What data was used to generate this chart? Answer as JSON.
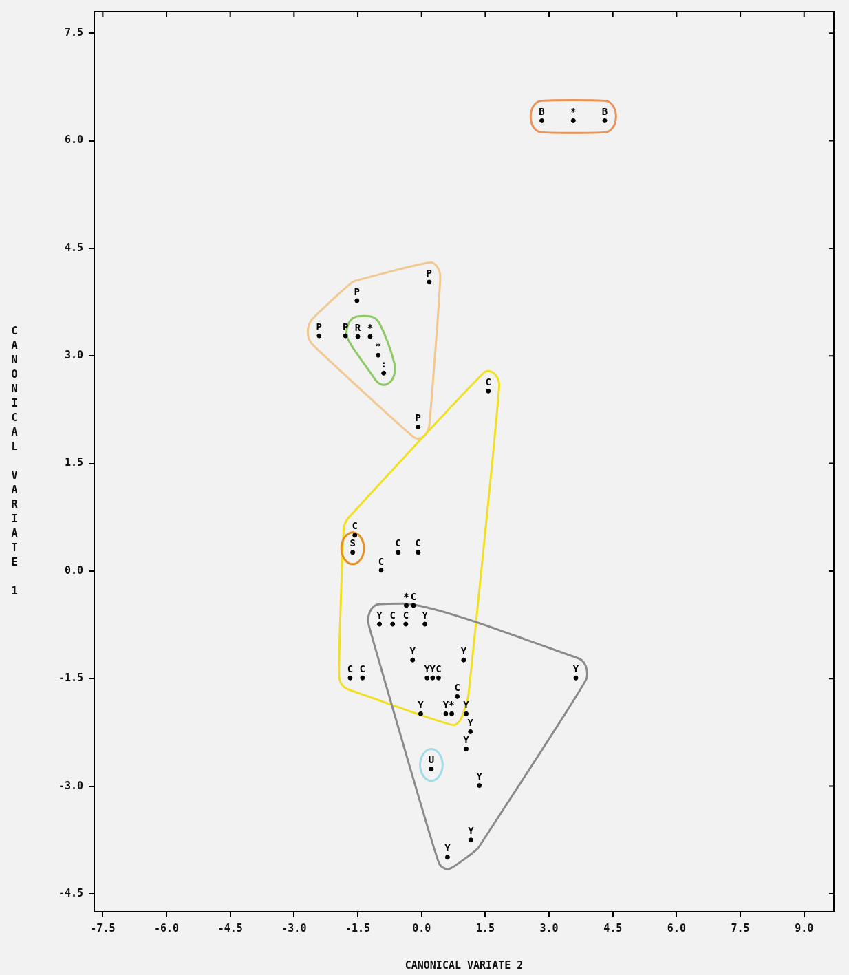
{
  "chart_data": {
    "type": "scatter",
    "xlabel": "CANONICAL VARIATE 2",
    "ylabel": "CANONICAL VARIATE 1",
    "marker": "circle",
    "xlim": [
      -7.7,
      9.7
    ],
    "ylim": [
      -4.75,
      7.8
    ],
    "xticks": [
      -7.5,
      {
        "value": -6,
        "label": "-6.0"
      },
      -4.5,
      {
        "value": -3,
        "label": "-3.0"
      },
      -1.5,
      {
        "value": 0,
        "label": "0.0"
      },
      1.5,
      {
        "value": 3,
        "label": "3.0"
      },
      4.5,
      {
        "value": 6,
        "label": "6.0"
      },
      7.5,
      {
        "value": 9,
        "label": "9.0"
      }
    ],
    "yticks": [
      -4.5,
      {
        "value": -3,
        "label": "-3.0"
      },
      -1.5,
      {
        "value": 0,
        "label": "0.0"
      },
      1.5,
      {
        "value": 3,
        "label": "3.0"
      },
      4.5,
      {
        "value": 6,
        "label": "6.0"
      },
      7.5
    ],
    "series": [
      {
        "name": "B",
        "color": "#000000",
        "x": [
          2.83,
          4.31
        ],
        "values": [
          6.28,
          6.28
        ]
      },
      {
        "name": "P",
        "color": "#000000",
        "x": [
          -2.41,
          -1.79,
          -1.52,
          0.18,
          -0.08
        ],
        "values": [
          3.28,
          3.28,
          3.77,
          4.03,
          2.01
        ]
      },
      {
        "name": "R",
        "color": "#000000",
        "x": [
          -1.5
        ],
        "values": [
          3.27
        ]
      },
      {
        "name": "C",
        "color": "#000000",
        "x": [
          1.57,
          -1.57,
          -0.55,
          -0.08,
          -0.95,
          -0.19,
          -0.68,
          -0.37,
          -1.68,
          -1.39,
          0.4,
          0.84
        ],
        "values": [
          2.51,
          0.5,
          0.26,
          0.26,
          0.01,
          -0.48,
          -0.74,
          -0.74,
          -1.49,
          -1.49,
          -1.49,
          -1.75
        ]
      },
      {
        "name": "S",
        "color": "#000000",
        "x": [
          -1.62
        ],
        "values": [
          0.26
        ]
      },
      {
        "name": "Y",
        "color": "#000000",
        "x": [
          -0.99,
          0.08,
          -0.21,
          0.99,
          0.13,
          0.26,
          3.63,
          -0.02,
          0.57,
          1.05,
          1.15,
          1.05,
          1.36,
          1.16,
          0.61
        ],
        "values": [
          -0.74,
          -0.74,
          -1.24,
          -1.24,
          -1.49,
          -1.49,
          -1.49,
          -1.99,
          -1.99,
          -1.99,
          -2.24,
          -2.48,
          -2.99,
          -3.75,
          -3.99
        ]
      },
      {
        "name": "U",
        "color": "#000000",
        "x": [
          0.23
        ],
        "values": [
          -2.76
        ]
      },
      {
        "name": "*",
        "color": "#000000",
        "x": [
          -1.21,
          -1.02,
          3.57,
          -0.36,
          0.71
        ],
        "values": [
          3.27,
          3.01,
          6.28,
          -0.48,
          -1.99
        ]
      },
      {
        "name": ":",
        "color": "#000000",
        "x": [
          -0.89
        ],
        "values": [
          2.76
        ]
      }
    ]
  }
}
